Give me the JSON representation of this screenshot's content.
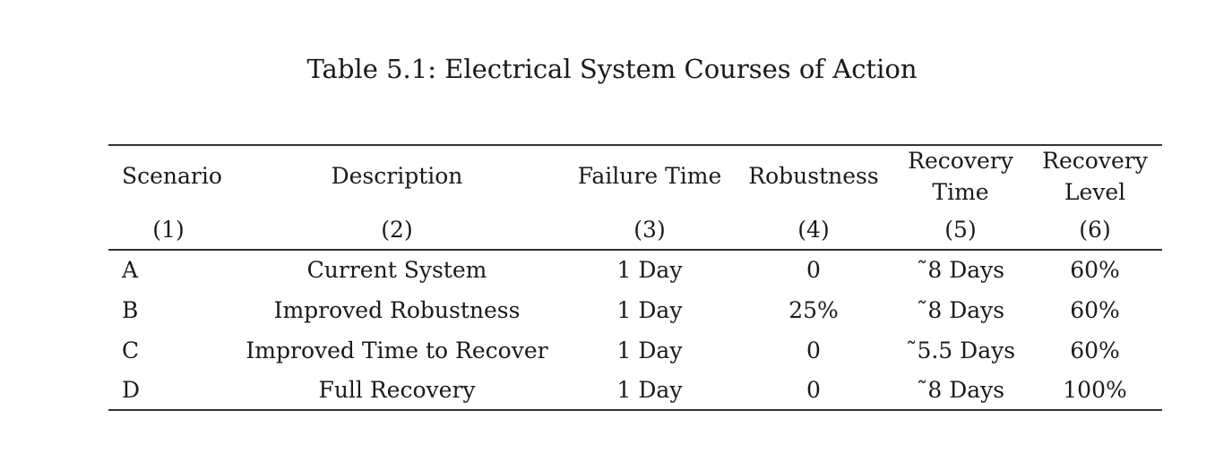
{
  "caption": "Table 5.1: Electrical System Courses of Action",
  "table": {
    "headers": [
      {
        "line1": "Scenario",
        "line2": "",
        "num": "(1)"
      },
      {
        "line1": "Description",
        "line2": "",
        "num": "(2)"
      },
      {
        "line1": "Failure Time",
        "line2": "",
        "num": "(3)"
      },
      {
        "line1": "Robustness",
        "line2": "",
        "num": "(4)"
      },
      {
        "line1": "Recovery",
        "line2": "Time",
        "num": "(5)"
      },
      {
        "line1": "Recovery",
        "line2": "Level",
        "num": "(6)"
      }
    ],
    "rows": [
      [
        "A",
        "Current System",
        "1 Day",
        "0",
        "˜8 Days",
        "60%"
      ],
      [
        "B",
        "Improved Robustness",
        "1 Day",
        "25%",
        "˜8 Days",
        "60%"
      ],
      [
        "C",
        "Improved Time to Recover",
        "1 Day",
        "0",
        "˜5.5 Days",
        "60%"
      ],
      [
        "D",
        "Full Recovery",
        "1 Day",
        "0",
        "˜8 Days",
        "100%"
      ]
    ]
  }
}
